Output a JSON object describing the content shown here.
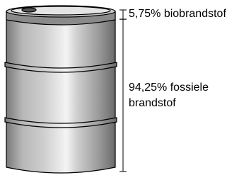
{
  "chart_data": {
    "type": "barrel",
    "categories": [
      "biobrandstof",
      "fossiele brandstof"
    ],
    "values": [
      5.75,
      94.25
    ],
    "value_labels": [
      "5,75%",
      "94,25%"
    ],
    "ylim": [
      0,
      100
    ]
  }
}
